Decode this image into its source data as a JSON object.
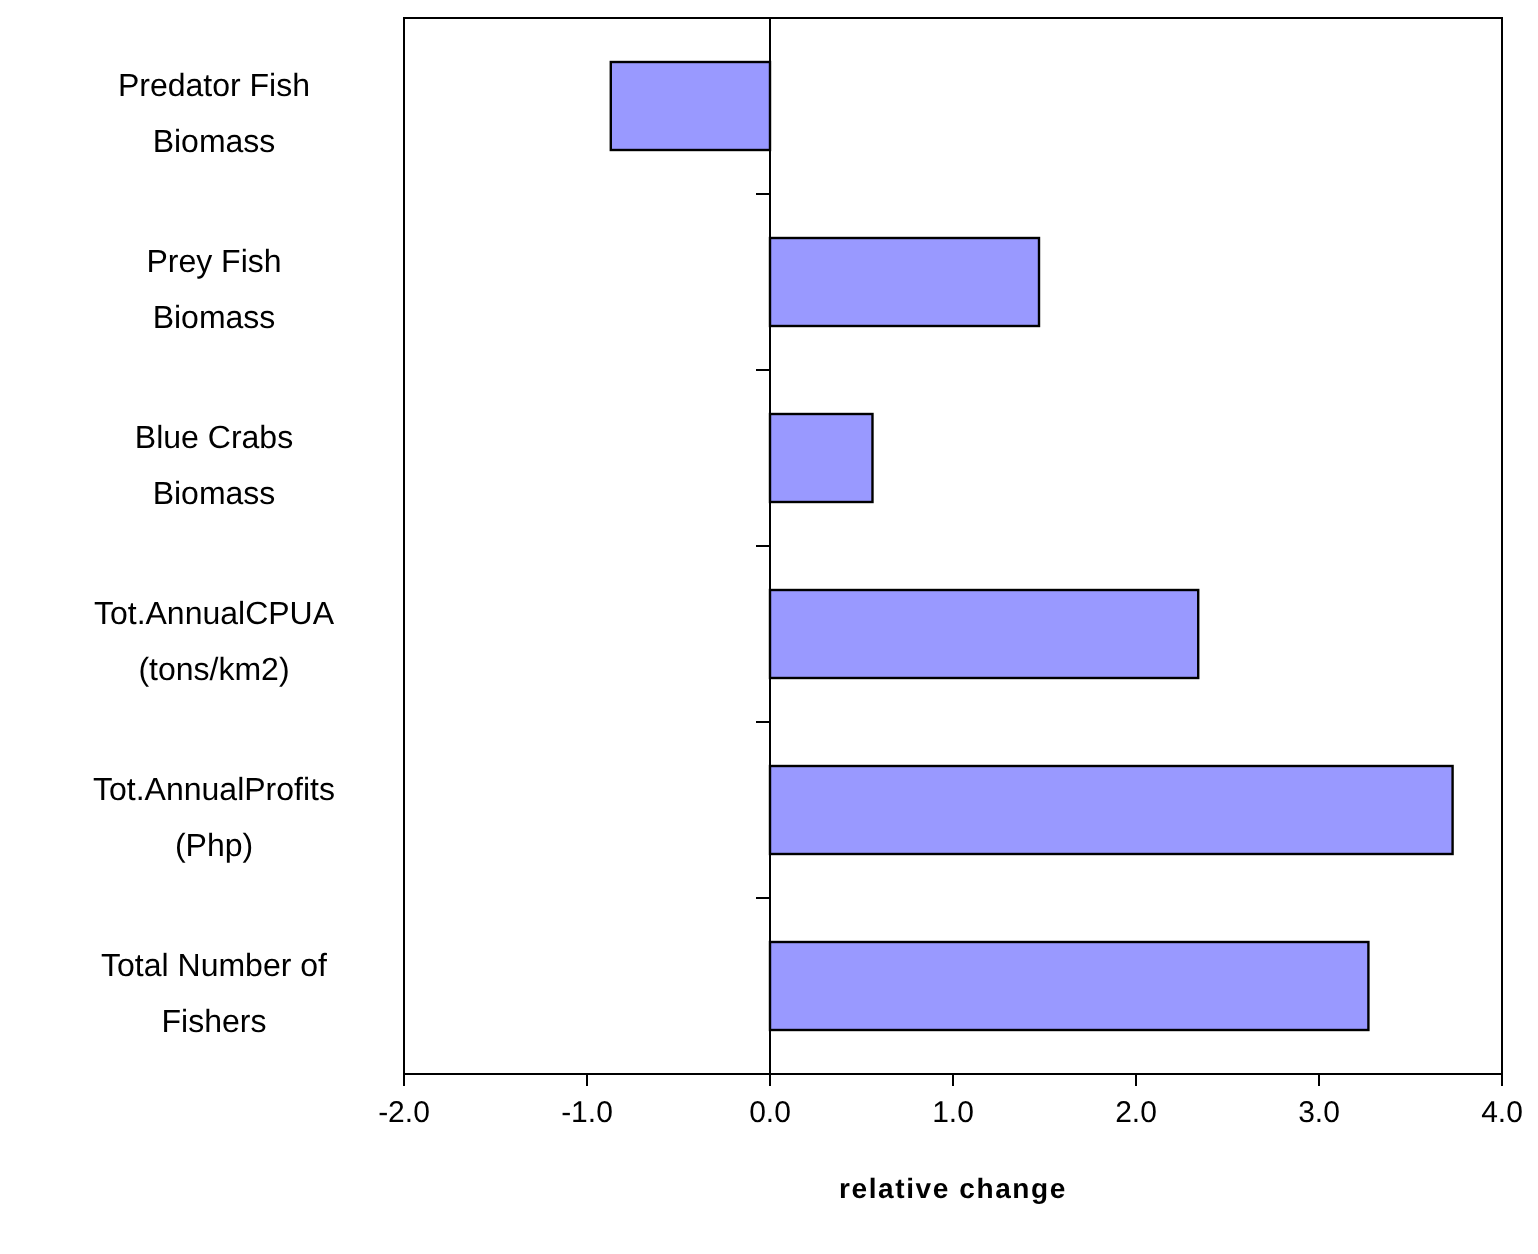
{
  "chart_data": {
    "type": "bar",
    "orientation": "horizontal",
    "xlabel": "relative change",
    "categories": [
      "Predator Fish\nBiomass",
      "Prey Fish\nBiomass",
      "Blue Crabs\nBiomass",
      "Tot.AnnualCPUA\n(tons/km2)",
      "Tot.AnnualProfits\n(Php)",
      "Total Number of\nFishers"
    ],
    "values": [
      -0.87,
      1.47,
      0.56,
      2.34,
      3.73,
      3.27
    ],
    "color": "#9999ff",
    "xlim": [
      -2,
      4
    ],
    "xticks": [
      {
        "value": -2,
        "label": "-2.0"
      },
      {
        "value": -1,
        "label": "-1.0"
      },
      {
        "value": 0,
        "label": "0.0"
      },
      {
        "value": 1,
        "label": "1.0"
      },
      {
        "value": 2,
        "label": "2.0"
      },
      {
        "value": 3,
        "label": "3.0"
      },
      {
        "value": 4,
        "label": "4.0"
      }
    ]
  }
}
